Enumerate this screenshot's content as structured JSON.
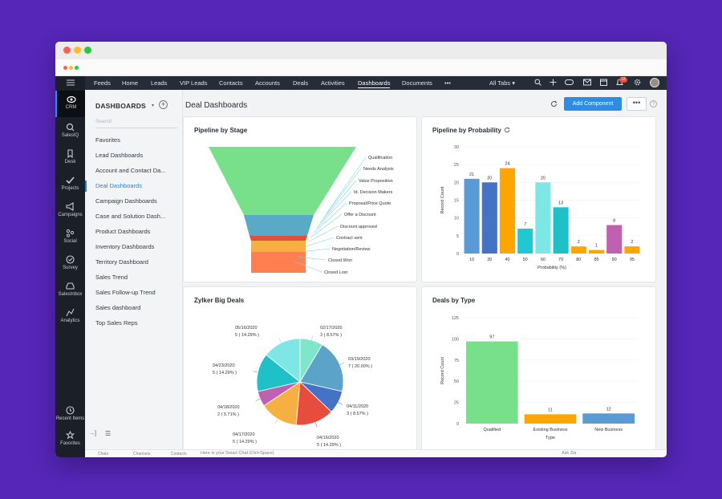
{
  "nav": {
    "items": [
      "Feeds",
      "Home",
      "Leads",
      "VIP Leads",
      "Contacts",
      "Accounts",
      "Deals",
      "Activities",
      "Dashboards",
      "Documents"
    ],
    "more": "•••",
    "all_tabs": "All Tabs",
    "notification_count": "18"
  },
  "rail": {
    "items": [
      "CRM",
      "SalesIQ",
      "Desk",
      "Projects",
      "Campaigns",
      "Social",
      "Survey",
      "SalesInbox",
      "Analytics"
    ],
    "bottom": [
      "Recent Items",
      "Favorites"
    ]
  },
  "sidebar": {
    "title": "DASHBOARDS",
    "search_placeholder": "Search",
    "items": [
      "Favorites",
      "Lead Dashboards",
      "Account and Contact Da...",
      "Deal Dashboards",
      "Campaign Dashboards",
      "Case and Solution Dash...",
      "Product Dashboards",
      "Inventory Dashboards",
      "Territory Dashboard",
      "Sales Trend",
      "Sales Follow-up Trend",
      "Sales dashboard",
      "Top Sales Reps"
    ],
    "active_index": 3
  },
  "main": {
    "title": "Deal Dashboards",
    "add_component": "Add Component",
    "more": "•••",
    "help": "?"
  },
  "bottombar": {
    "chats": "Chats",
    "channels": "Channels",
    "contacts": "Contacts",
    "smart_chat": "Here is your Smart Chat (Ctrl+Space)",
    "ask_zia": "Ask Zia"
  },
  "colors": {
    "accent": "#2f8ce6",
    "nav_bg": "#262c38",
    "rail_bg": "#1b1f27"
  },
  "chart_data": [
    {
      "type": "funnel",
      "title": "Pipeline by Stage",
      "stages": [
        "Qualification",
        "Needs Analysis",
        "Value Proposition",
        "Id. Decision Makers",
        "Proposal/Price Quote",
        "Offer a Discount",
        "Discount approved",
        "Contract sent",
        "Negotiation/Review",
        "Closed Won",
        "Closed Lost"
      ],
      "colors": [
        "#78e08a",
        "#5aa9c7",
        "#e74c3c",
        "#f5b041",
        "#ff7f50"
      ]
    },
    {
      "type": "bar",
      "title": "Pipeline by Probability",
      "categories": [
        "10",
        "20",
        "40",
        "50",
        "60",
        "70",
        "80",
        "85",
        "90",
        "95"
      ],
      "values": [
        21,
        20,
        24,
        7,
        20,
        13,
        2,
        1,
        8,
        2
      ],
      "colors": [
        "#5b9bd5",
        "#4472c4",
        "#ffa500",
        "#20c9d1",
        "#7fe6e6",
        "#20c0c8",
        "#ffa500",
        "#ffa500",
        "#c060b0",
        "#ffa500"
      ],
      "xlabel": "Probability (%)",
      "ylabel": "Record Count",
      "yticks": [
        0,
        5,
        10,
        15,
        20,
        25,
        30
      ],
      "ylim": [
        0,
        30
      ]
    },
    {
      "type": "pie",
      "title": "Zylker Big Deals",
      "slices": [
        {
          "label": "02/17/2020",
          "value_label": "3 ( 8.57% )",
          "value": 8.57,
          "color": "#7fe6c9"
        },
        {
          "label": "03/19/2020",
          "value_label": "7 ( 20.00% )",
          "value": 20.0,
          "color": "#5ba3c9"
        },
        {
          "label": "04/11/2020",
          "value_label": "3 ( 8.57% )",
          "value": 8.57,
          "color": "#4472c4"
        },
        {
          "label": "04/16/2020",
          "value_label": "5 ( 14.29% )",
          "value": 14.29,
          "color": "#e74c3c"
        },
        {
          "label": "04/17/2020",
          "value_label": "5 ( 14.29% )",
          "value": 14.29,
          "color": "#f5b041"
        },
        {
          "label": "04/18/2020",
          "value_label": "2 ( 5.71% )",
          "value": 5.71,
          "color": "#c060b0"
        },
        {
          "label": "04/23/2020",
          "value_label": "5 ( 14.29% )",
          "value": 14.29,
          "color": "#20c0c8"
        },
        {
          "label": "05/16/2020",
          "value_label": "5 ( 14.29% )",
          "value": 14.29,
          "color": "#7fe6e6"
        }
      ]
    },
    {
      "type": "bar",
      "title": "Deals by Type",
      "categories": [
        "Qualified",
        "Existing Business",
        "New Business"
      ],
      "values": [
        97,
        11,
        12
      ],
      "colors": [
        "#78e08a",
        "#ffa500",
        "#5b9bd5"
      ],
      "xlabel": "Type",
      "ylabel": "Record Count",
      "yticks": [
        0,
        25,
        50,
        75,
        100,
        125
      ],
      "ylim": [
        0,
        125
      ]
    }
  ]
}
